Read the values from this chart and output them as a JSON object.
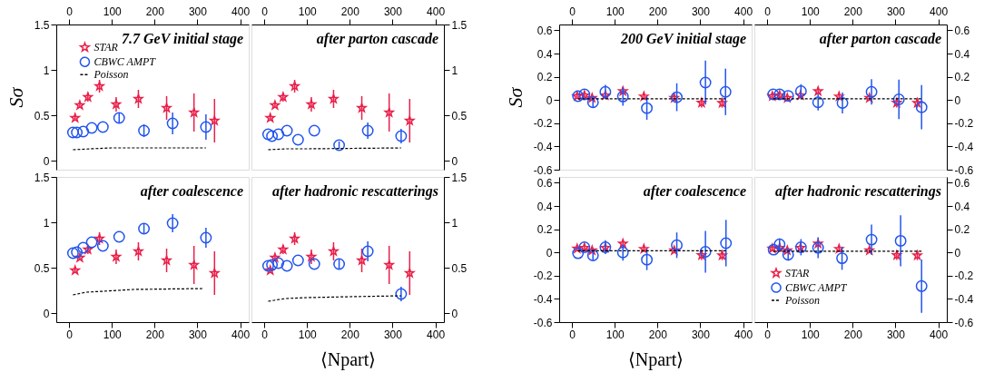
{
  "chart_data": [
    {
      "type": "scatter",
      "title": "7.7 GeV initial stage",
      "ylabel": "Sσ",
      "xlim": [
        -30,
        420
      ],
      "ylim": [
        -0.1,
        1.5
      ],
      "xticks": [
        0,
        100,
        200,
        300,
        400
      ],
      "yticks": [
        0,
        0.5,
        1,
        1.5
      ],
      "legend": "top",
      "grid": false,
      "series": [
        {
          "name": "STAR",
          "type": "scatter",
          "marker": "star",
          "color": "#e8204a",
          "x": [
            14,
            25,
            44,
            71,
            110,
            162,
            228,
            292,
            340
          ],
          "values": [
            0.47,
            0.61,
            0.7,
            0.82,
            0.62,
            0.68,
            0.58,
            0.53,
            0.44
          ],
          "errors": [
            0.02,
            0.03,
            0.05,
            0.07,
            0.08,
            0.1,
            0.13,
            0.21,
            0.24
          ]
        },
        {
          "name": "CBWC AMPT",
          "type": "scatter",
          "marker": "circle",
          "color": "#2255ee",
          "x": [
            9,
            18,
            33,
            53,
            79,
            117,
            175,
            242,
            320
          ],
          "values": [
            0.31,
            0.31,
            0.32,
            0.36,
            0.37,
            0.47,
            0.33,
            0.41,
            0.37
          ],
          "errors": [
            null,
            null,
            null,
            null,
            null,
            0.05,
            0.07,
            0.12,
            0.14
          ]
        },
        {
          "name": "Poisson",
          "type": "line",
          "marker": "none",
          "line_style": "dashed",
          "color": "#000000",
          "x": [
            9,
            50,
            100,
            320
          ],
          "values": [
            0.12,
            0.13,
            0.14,
            0.14
          ]
        }
      ]
    },
    {
      "type": "scatter",
      "title": "after parton cascade",
      "xlim": [
        -30,
        420
      ],
      "ylim": [
        -0.1,
        1.5
      ],
      "xticks": [
        0,
        100,
        200,
        300,
        400
      ],
      "yticks": [
        0,
        0.5,
        1,
        1.5
      ],
      "grid": false,
      "series": [
        {
          "type": "scatter",
          "marker": "star",
          "color": "#e8204a",
          "x": [
            14,
            25,
            44,
            71,
            110,
            162,
            228,
            292,
            340
          ],
          "values": [
            0.47,
            0.61,
            0.7,
            0.82,
            0.62,
            0.68,
            0.58,
            0.53,
            0.44
          ],
          "errors": [
            0.02,
            0.03,
            0.05,
            0.07,
            0.08,
            0.1,
            0.13,
            0.21,
            0.24
          ]
        },
        {
          "type": "scatter",
          "marker": "circle",
          "color": "#2255ee",
          "x": [
            9,
            18,
            33,
            53,
            79,
            117,
            175,
            242,
            320
          ],
          "values": [
            0.29,
            0.27,
            0.29,
            0.33,
            0.23,
            0.33,
            0.17,
            0.33,
            0.27
          ],
          "errors": [
            null,
            null,
            null,
            null,
            null,
            null,
            0.04,
            0.09,
            0.08
          ]
        },
        {
          "type": "line",
          "marker": "none",
          "line_style": "dashed",
          "color": "#000000",
          "x": [
            9,
            50,
            100,
            320
          ],
          "values": [
            0.12,
            0.13,
            0.13,
            0.14
          ]
        }
      ]
    },
    {
      "type": "scatter",
      "title": "after coalescence",
      "xlim": [
        -30,
        420
      ],
      "ylim": [
        -0.1,
        1.5
      ],
      "xticks": [
        0,
        100,
        200,
        300,
        400
      ],
      "yticks": [
        0,
        0.5,
        1,
        1.5
      ],
      "grid": false,
      "series": [
        {
          "type": "scatter",
          "marker": "star",
          "color": "#e8204a",
          "x": [
            14,
            25,
            44,
            71,
            110,
            162,
            228,
            292,
            340
          ],
          "values": [
            0.47,
            0.61,
            0.7,
            0.82,
            0.62,
            0.68,
            0.58,
            0.53,
            0.44
          ],
          "errors": [
            0.02,
            0.03,
            0.05,
            0.07,
            0.08,
            0.1,
            0.13,
            0.21,
            0.24
          ]
        },
        {
          "type": "scatter",
          "marker": "circle",
          "color": "#2255ee",
          "x": [
            9,
            18,
            33,
            53,
            79,
            117,
            175,
            242,
            320
          ],
          "values": [
            0.66,
            0.67,
            0.72,
            0.78,
            0.74,
            0.84,
            0.93,
            0.99,
            0.83
          ],
          "errors": [
            null,
            null,
            null,
            null,
            null,
            null,
            0.05,
            0.1,
            0.11
          ]
        },
        {
          "type": "line",
          "marker": "none",
          "line_style": "dashed",
          "color": "#000000",
          "x": [
            9,
            40,
            80,
            150,
            315
          ],
          "values": [
            0.2,
            0.23,
            0.24,
            0.26,
            0.27
          ]
        }
      ]
    },
    {
      "type": "scatter",
      "title": "after hadronic rescatterings",
      "xlabel": "⟨Npart⟩",
      "xlim": [
        -30,
        420
      ],
      "ylim": [
        -0.1,
        1.5
      ],
      "xticks": [
        0,
        100,
        200,
        300,
        400
      ],
      "yticks": [
        0,
        0.5,
        1,
        1.5
      ],
      "grid": false,
      "series": [
        {
          "type": "scatter",
          "marker": "star",
          "color": "#e8204a",
          "x": [
            14,
            25,
            44,
            71,
            110,
            162,
            228,
            292,
            340
          ],
          "values": [
            0.47,
            0.61,
            0.7,
            0.82,
            0.62,
            0.68,
            0.58,
            0.53,
            0.44
          ],
          "errors": [
            0.02,
            0.03,
            0.05,
            0.07,
            0.08,
            0.1,
            0.13,
            0.21,
            0.24
          ]
        },
        {
          "type": "scatter",
          "marker": "circle",
          "color": "#2255ee",
          "x": [
            9,
            18,
            33,
            53,
            79,
            117,
            175,
            242,
            320
          ],
          "values": [
            0.52,
            0.53,
            0.55,
            0.52,
            0.58,
            0.54,
            0.54,
            0.68,
            0.21
          ],
          "errors": [
            null,
            null,
            null,
            null,
            null,
            null,
            0.05,
            0.11,
            0.08
          ]
        },
        {
          "type": "line",
          "marker": "none",
          "line_style": "dashed",
          "color": "#000000",
          "x": [
            9,
            50,
            100,
            200,
            320
          ],
          "values": [
            0.13,
            0.16,
            0.17,
            0.18,
            0.19
          ]
        }
      ]
    },
    {
      "type": "scatter",
      "title": "200 GeV initial stage",
      "ylabel": "Sσ",
      "xlim": [
        -30,
        420
      ],
      "ylim": [
        -0.6,
        0.65
      ],
      "xticks": [
        0,
        100,
        200,
        300,
        400
      ],
      "yticks": [
        -0.6,
        -0.4,
        -0.2,
        0,
        0.2,
        0.4,
        0.6
      ],
      "grid": false,
      "series": [
        {
          "type": "scatter",
          "marker": "star",
          "color": "#e8204a",
          "x": [
            12,
            29,
            47,
            78,
            119,
            168,
            239,
            303,
            351
          ],
          "values": [
            0.033,
            0.04,
            0.017,
            0.04,
            0.076,
            0.03,
            0.017,
            -0.024,
            -0.026
          ],
          "errors": [
            0.02,
            0.02,
            0.02,
            0.02,
            0.02,
            0.02,
            0.02,
            0.04,
            0.04
          ]
        },
        {
          "type": "scatter",
          "marker": "circle",
          "color": "#2255ee",
          "x": [
            14,
            29,
            49,
            78,
            119,
            175,
            245,
            312,
            359
          ],
          "values": [
            0.033,
            0.048,
            -0.02,
            0.07,
            0.03,
            -0.07,
            0.024,
            0.15,
            0.07
          ],
          "errors": [
            null,
            null,
            0.04,
            0.06,
            0.08,
            0.1,
            0.12,
            0.19,
            0.2
          ]
        },
        {
          "type": "line",
          "marker": "none",
          "line_style": "dashed",
          "color": "#000000",
          "x": [
            14,
            359
          ],
          "values": [
            0.01,
            0.01
          ]
        }
      ]
    },
    {
      "type": "scatter",
      "title": "after parton cascade",
      "xlim": [
        -30,
        420
      ],
      "ylim": [
        -0.6,
        0.65
      ],
      "xticks": [
        0,
        100,
        200,
        300,
        400
      ],
      "yticks": [
        -0.6,
        -0.4,
        -0.2,
        0,
        0.2,
        0.4,
        0.6
      ],
      "grid": false,
      "series": [
        {
          "type": "scatter",
          "marker": "star",
          "color": "#e8204a",
          "x": [
            12,
            29,
            47,
            78,
            119,
            168,
            239,
            303,
            351
          ],
          "values": [
            0.033,
            0.04,
            0.017,
            0.04,
            0.076,
            0.03,
            0.017,
            -0.024,
            -0.026
          ],
          "errors": [
            0.02,
            0.02,
            0.02,
            0.02,
            0.02,
            0.02,
            0.02,
            0.04,
            0.04
          ]
        },
        {
          "type": "scatter",
          "marker": "circle",
          "color": "#2255ee",
          "x": [
            14,
            29,
            49,
            79,
            119,
            176,
            244,
            308,
            361
          ],
          "values": [
            0.048,
            0.048,
            0.036,
            0.076,
            -0.02,
            -0.026,
            0.07,
            0.005,
            -0.062
          ],
          "errors": [
            null,
            null,
            null,
            0.06,
            0.07,
            0.09,
            0.11,
            0.17,
            0.19
          ]
        },
        {
          "type": "line",
          "marker": "none",
          "line_style": "dashed",
          "color": "#000000",
          "x": [
            14,
            361
          ],
          "values": [
            0.01,
            0.01
          ]
        }
      ]
    },
    {
      "type": "scatter",
      "title": "after coalescence",
      "xlabel": "⟨Npart⟩",
      "xlim": [
        -30,
        420
      ],
      "ylim": [
        -0.6,
        0.65
      ],
      "xticks": [
        0,
        100,
        200,
        300,
        400
      ],
      "yticks": [
        -0.6,
        -0.4,
        -0.2,
        0,
        0.2,
        0.4,
        0.6
      ],
      "grid": false,
      "series": [
        {
          "type": "scatter",
          "marker": "star",
          "color": "#e8204a",
          "x": [
            12,
            29,
            47,
            78,
            119,
            168,
            239,
            303,
            351
          ],
          "values": [
            0.033,
            0.04,
            0.017,
            0.04,
            0.076,
            0.03,
            0.017,
            -0.024,
            -0.026
          ],
          "errors": [
            0.02,
            0.02,
            0.02,
            0.02,
            0.02,
            0.02,
            0.02,
            0.04,
            0.04
          ]
        },
        {
          "type": "scatter",
          "marker": "circle",
          "color": "#2255ee",
          "x": [
            14,
            29,
            49,
            78,
            119,
            175,
            245,
            312,
            360
          ],
          "values": [
            -0.007,
            0.045,
            -0.026,
            0.045,
            0.0,
            -0.062,
            0.062,
            0.005,
            0.08
          ],
          "errors": [
            null,
            null,
            0.04,
            0.06,
            0.07,
            0.09,
            0.11,
            0.18,
            0.2
          ]
        },
        {
          "type": "line",
          "marker": "none",
          "line_style": "dashed",
          "color": "#000000",
          "x": [
            14,
            360
          ],
          "values": [
            0.015,
            0.015
          ]
        }
      ]
    },
    {
      "type": "scatter",
      "title": "after hadronic rescatterings",
      "xlim": [
        -30,
        420
      ],
      "ylim": [
        -0.6,
        0.65
      ],
      "xticks": [
        0,
        100,
        200,
        300,
        400
      ],
      "yticks": [
        -0.6,
        -0.4,
        -0.2,
        0,
        0.2,
        0.4,
        0.6
      ],
      "legend": "bottom left",
      "grid": false,
      "series": [
        {
          "name": "STAR",
          "type": "scatter",
          "marker": "star",
          "color": "#e8204a",
          "x": [
            12,
            29,
            47,
            78,
            119,
            168,
            239,
            303,
            351
          ],
          "values": [
            0.033,
            0.04,
            0.017,
            0.04,
            0.076,
            0.03,
            0.017,
            -0.024,
            -0.026
          ],
          "errors": [
            0.02,
            0.02,
            0.02,
            0.02,
            0.02,
            0.02,
            0.02,
            0.04,
            0.04
          ]
        },
        {
          "name": "CBWC AMPT",
          "type": "scatter",
          "marker": "circle",
          "color": "#2255ee",
          "x": [
            15,
            29,
            49,
            79,
            119,
            175,
            244,
            312,
            361
          ],
          "values": [
            0.024,
            0.07,
            -0.02,
            0.045,
            0.04,
            -0.05,
            0.11,
            0.1,
            -0.29
          ],
          "errors": [
            null,
            0.05,
            0.05,
            0.07,
            0.09,
            0.1,
            0.13,
            0.22,
            0.23
          ]
        },
        {
          "name": "Poisson",
          "type": "line",
          "marker": "none",
          "line_style": "dashed",
          "color": "#000000",
          "x": [
            15,
            361
          ],
          "values": [
            0.01,
            0.01
          ]
        }
      ]
    }
  ]
}
